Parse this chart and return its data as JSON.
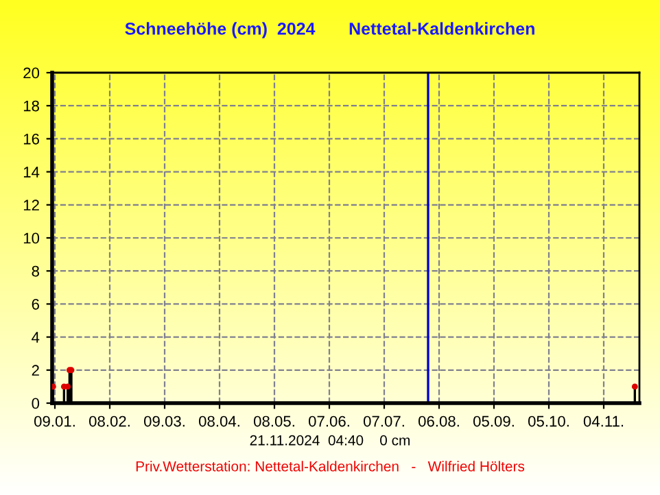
{
  "chart_data": {
    "type": "lollipop",
    "title": "Schneehöhe (cm)  2024       Nettetal-Kaldenkirchen",
    "x": [
      "2024-01-08",
      "2024-01-14",
      "2024-01-16",
      "2024-01-17",
      "2024-01-18",
      "2024-11-21"
    ],
    "values": [
      1,
      1,
      1,
      2,
      2,
      1
    ],
    "color": "#dd0000",
    "marker": "circle",
    "xlim": [
      "2024-01-07T12:00",
      "2024-11-23T12:00"
    ],
    "xticks": [
      {
        "value": "2024-01-09",
        "label": "09.01."
      },
      {
        "value": "2024-02-08",
        "label": "08.02."
      },
      {
        "value": "2024-03-09",
        "label": "09.03."
      },
      {
        "value": "2024-04-08",
        "label": "08.04."
      },
      {
        "value": "2024-05-08",
        "label": "08.05."
      },
      {
        "value": "2024-06-07",
        "label": "07.06."
      },
      {
        "value": "2024-07-07",
        "label": "07.07."
      },
      {
        "value": "2024-08-06",
        "label": "06.08."
      },
      {
        "value": "2024-09-05",
        "label": "05.09."
      },
      {
        "value": "2024-10-05",
        "label": "05.10."
      },
      {
        "value": "2024-11-04",
        "label": "04.11."
      }
    ],
    "ylim": [
      0,
      20
    ],
    "yticks": [
      0,
      2,
      4,
      6,
      8,
      10,
      12,
      14,
      16,
      18,
      20
    ],
    "grid": true,
    "ref_lines": [
      {
        "axis": "x",
        "value": "2024-07-31",
        "color": "#0000cc"
      }
    ],
    "annotations": [
      "21.11.2024  04:40    0 cm",
      "Priv.Wetterstation: Nettetal-Kaldenkirchen   -   Wilfried Hölters"
    ]
  }
}
